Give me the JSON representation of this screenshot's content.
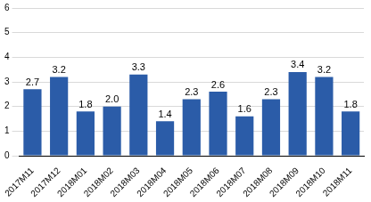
{
  "chart_data": {
    "type": "bar",
    "categories": [
      "2017M11",
      "2017M12",
      "2018M01",
      "2018M02",
      "2018M03",
      "2018M04",
      "2018M05",
      "2018M06",
      "2018M07",
      "2018M08",
      "2018M09",
      "2018M10",
      "2018M11"
    ],
    "values": [
      2.7,
      3.2,
      1.8,
      2.0,
      3.3,
      1.4,
      2.3,
      2.6,
      1.6,
      2.3,
      3.4,
      3.2,
      1.8
    ],
    "value_labels": [
      "2.7",
      "3.2",
      "1.8",
      "2.0",
      "3.3",
      "1.4",
      "2.3",
      "2.6",
      "1.6",
      "2.3",
      "3.4",
      "3.2",
      "1.8"
    ],
    "color": "#2b5ca8",
    "ylim": [
      0,
      6
    ],
    "yticks": [
      0,
      1,
      2,
      3,
      4,
      5,
      6
    ],
    "grid": true,
    "data_labels": true
  }
}
